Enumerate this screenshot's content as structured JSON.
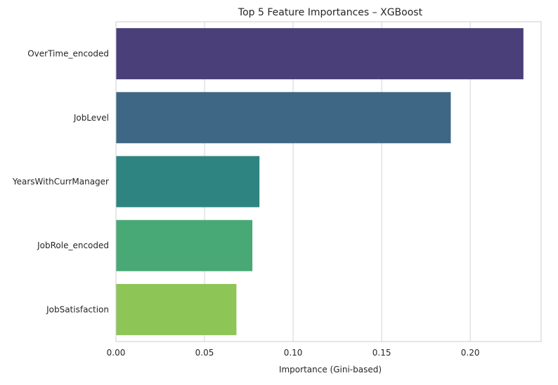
{
  "chart_data": {
    "type": "bar",
    "orientation": "horizontal",
    "title": "Top 5 Feature Importances – XGBoost",
    "xlabel": "Importance (Gini-based)",
    "ylabel": "",
    "categories": [
      "OverTime_encoded",
      "JobLevel",
      "YearsWithCurrManager",
      "JobRole_encoded",
      "JobSatisfaction"
    ],
    "values": [
      0.23,
      0.189,
      0.081,
      0.077,
      0.068
    ],
    "colors": [
      "#4b3f7a",
      "#3e6785",
      "#2e8481",
      "#48a876",
      "#8dc556"
    ],
    "xlim": [
      0,
      0.24
    ],
    "xticks": [
      "0.00",
      "0.05",
      "0.10",
      "0.15",
      "0.20"
    ],
    "xtick_values": [
      0,
      0.05,
      0.1,
      0.15,
      0.2
    ],
    "grid": true,
    "grid_color": "#d3d3d3",
    "legend": "none"
  }
}
